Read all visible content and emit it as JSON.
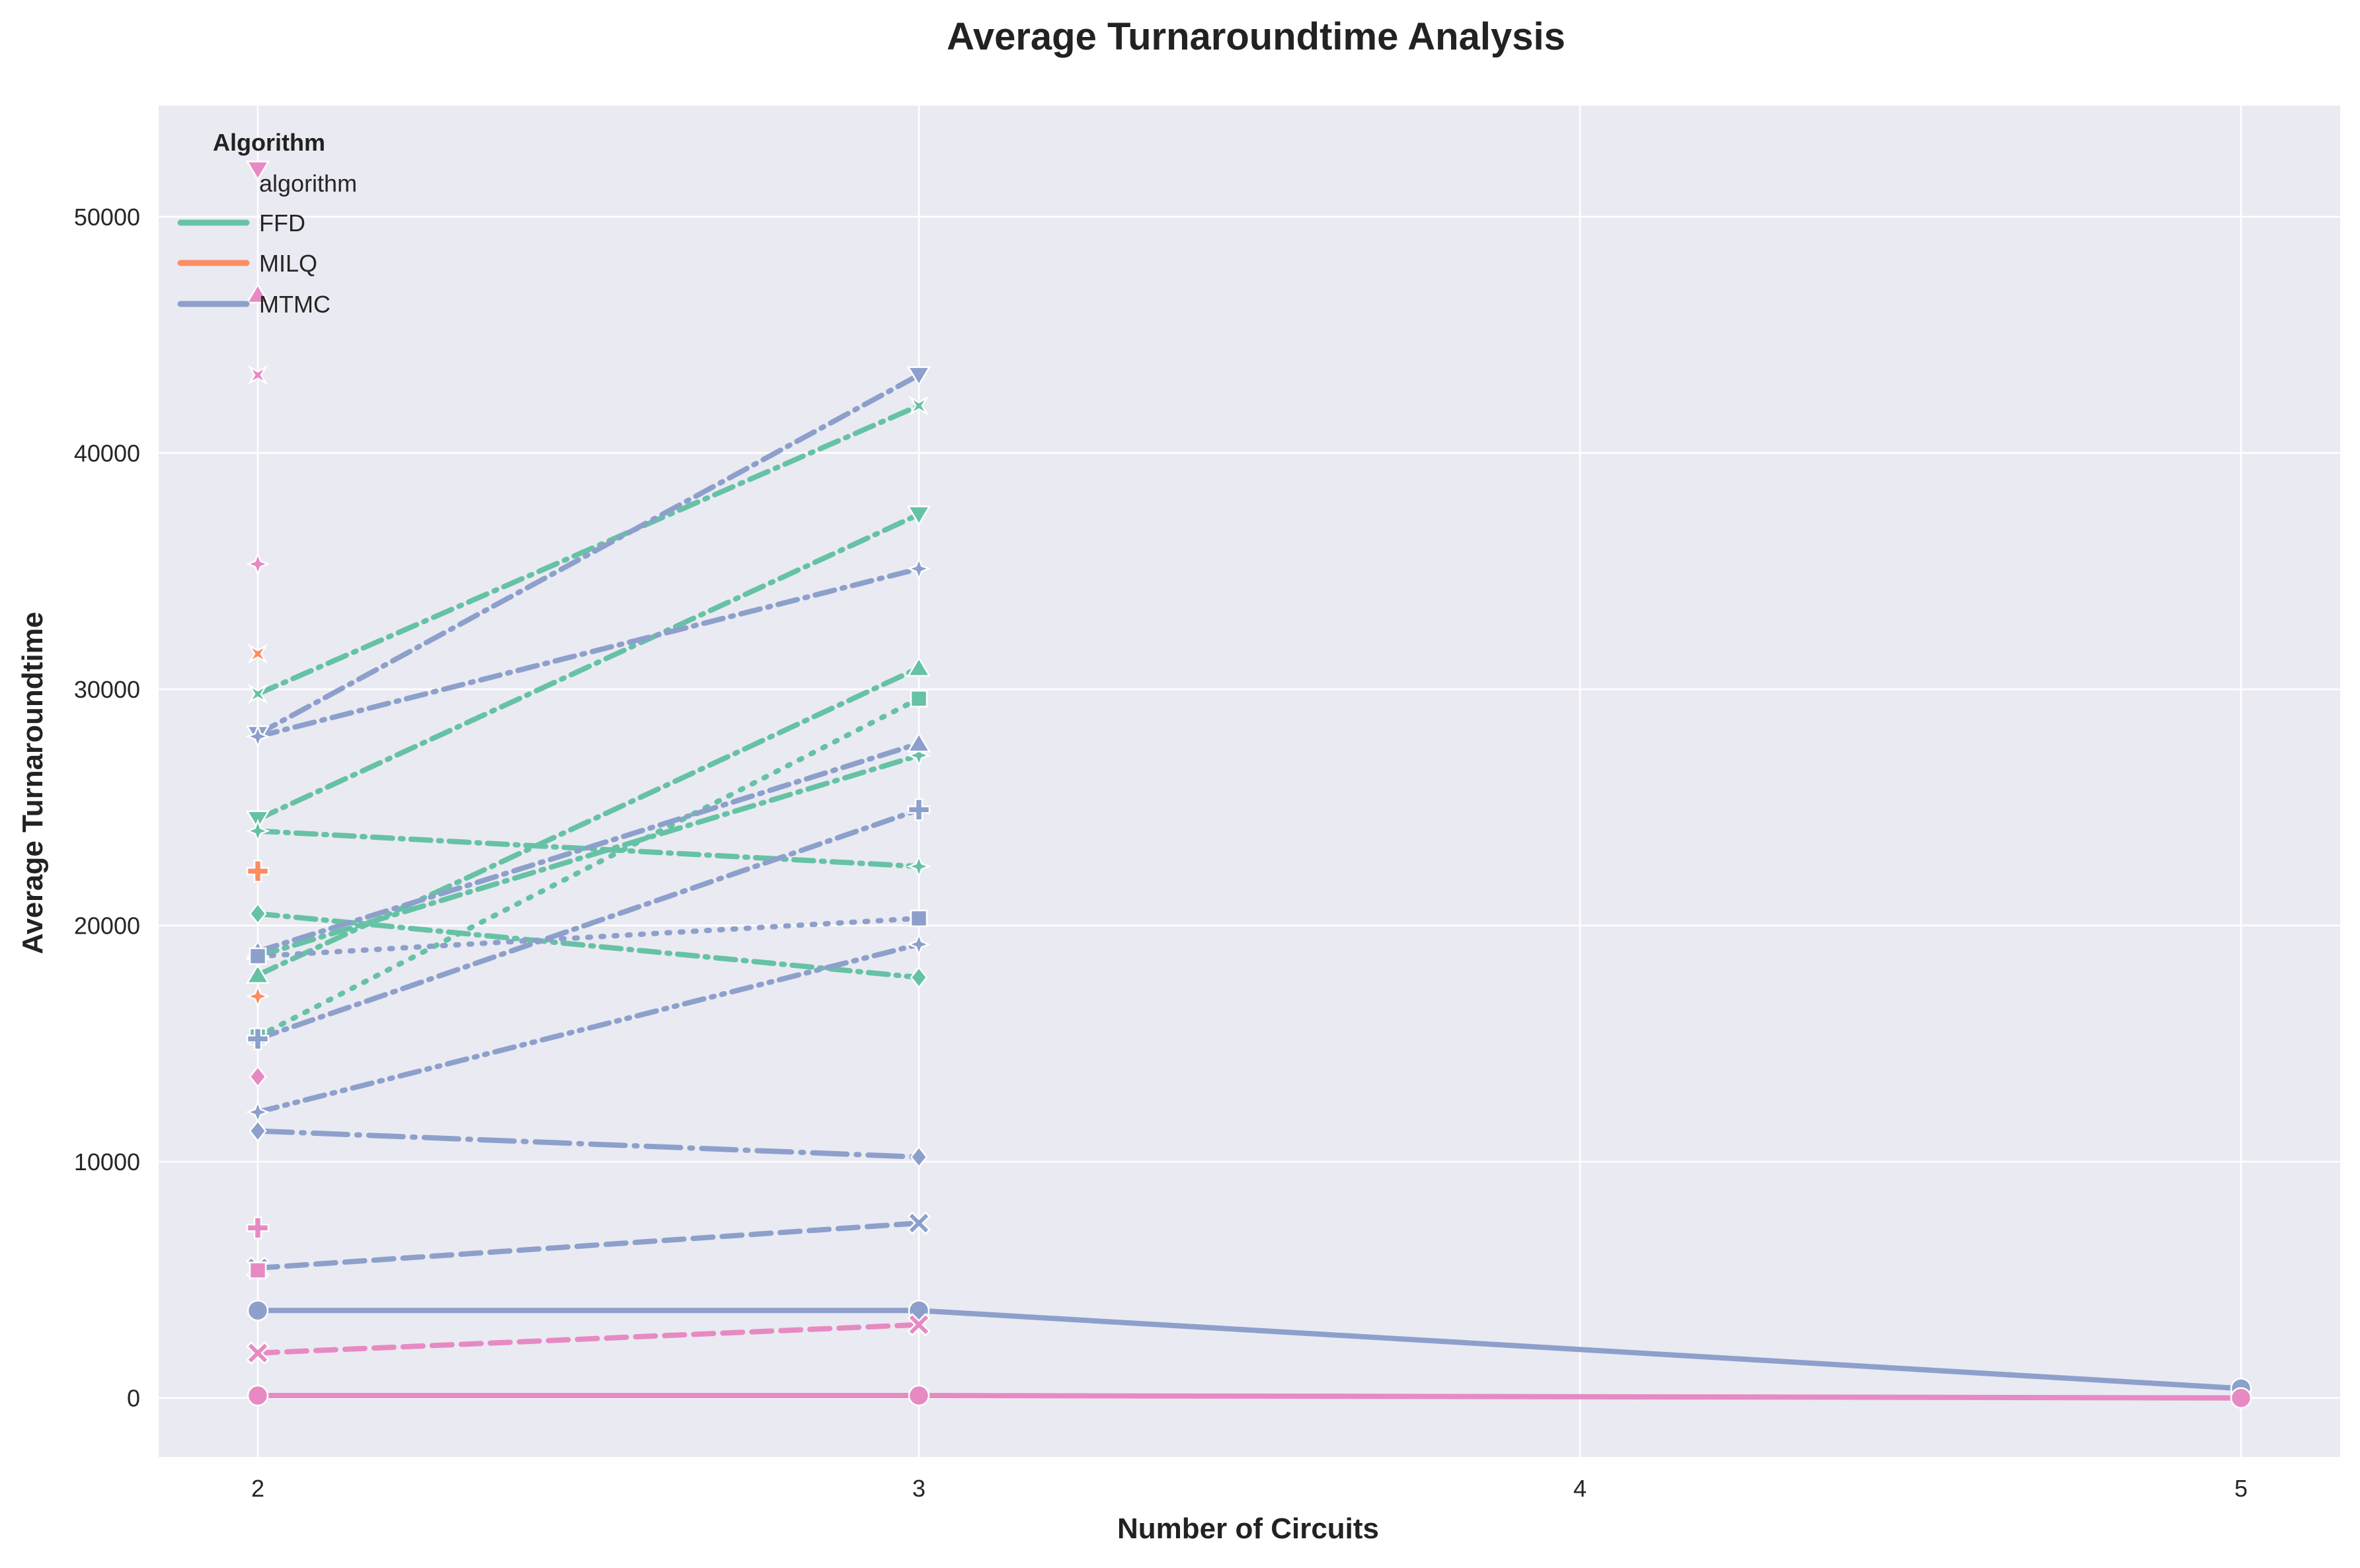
{
  "chart_data": {
    "type": "line",
    "title": "Average Turnaroundtime Analysis",
    "xlabel": "Number of Circuits",
    "ylabel": "Average Turnaroundtime",
    "xlim": [
      1.85,
      5.15
    ],
    "ylim": [
      -2500,
      54700
    ],
    "xticks": [
      2,
      3,
      4,
      5
    ],
    "yticks": [
      0,
      10000,
      20000,
      30000,
      40000,
      50000
    ],
    "grid": true,
    "background": "#eaeaf2",
    "legend": {
      "title": "Algorithm",
      "placement": "top-left",
      "header": "algorithm",
      "entries": [
        {
          "label": "FFD",
          "color": "#66c2a5"
        },
        {
          "label": "MILQ",
          "color": "#fc8d62"
        },
        {
          "label": "MTMC",
          "color": "#8da0cb"
        }
      ]
    },
    "colors": {
      "FFD": "#66c2a5",
      "MILQ": "#fc8d62",
      "MTMC": "#8da0cb",
      "pink": "#e78ac3"
    },
    "series": [
      {
        "color": "#66c2a5",
        "dash": "dashdot",
        "marker": "x4",
        "x": [
          2,
          3
        ],
        "y": [
          29800,
          42000
        ]
      },
      {
        "color": "#66c2a5",
        "dash": "dashdot",
        "marker": "tri-down",
        "x": [
          2,
          3
        ],
        "y": [
          24500,
          37400
        ]
      },
      {
        "color": "#66c2a5",
        "dash": "dashdot",
        "marker": "tri-up",
        "x": [
          2,
          3
        ],
        "y": [
          17900,
          30900
        ]
      },
      {
        "color": "#66c2a5",
        "dash": "dot",
        "marker": "square",
        "x": [
          2,
          3
        ],
        "y": [
          15300,
          29600
        ]
      },
      {
        "color": "#66c2a5",
        "dash": "dashdot",
        "marker": "star",
        "x": [
          2,
          3
        ],
        "y": [
          18700,
          27200
        ]
      },
      {
        "color": "#66c2a5",
        "dash": "dashdot",
        "marker": "star",
        "x": [
          2,
          3
        ],
        "y": [
          24000,
          22500
        ]
      },
      {
        "color": "#66c2a5",
        "dash": "dashdot",
        "marker": "diamond",
        "x": [
          2,
          3
        ],
        "y": [
          20500,
          17800
        ]
      },
      {
        "color": "#8da0cb",
        "dash": "dashdot",
        "marker": "tri-down",
        "x": [
          2,
          3
        ],
        "y": [
          28100,
          43300
        ]
      },
      {
        "color": "#8da0cb",
        "dash": "dashdot",
        "marker": "star",
        "x": [
          2,
          3
        ],
        "y": [
          28000,
          35100
        ]
      },
      {
        "color": "#8da0cb",
        "dash": "dashdot",
        "marker": "tri-up",
        "x": [
          2,
          3
        ],
        "y": [
          18900,
          27700
        ]
      },
      {
        "color": "#8da0cb",
        "dash": "dashdot",
        "marker": "plus",
        "x": [
          2,
          3
        ],
        "y": [
          15200,
          24900
        ]
      },
      {
        "color": "#8da0cb",
        "dash": "dot",
        "marker": "square",
        "x": [
          2,
          3
        ],
        "y": [
          18700,
          20300
        ]
      },
      {
        "color": "#8da0cb",
        "dash": "dashdotdot",
        "marker": "star",
        "x": [
          2,
          3
        ],
        "y": [
          12100,
          19200
        ]
      },
      {
        "color": "#8da0cb",
        "dash": "longdashdot",
        "marker": "diamond",
        "x": [
          2,
          3
        ],
        "y": [
          11300,
          10200
        ]
      },
      {
        "color": "#8da0cb",
        "dash": "dash",
        "marker": "x",
        "x": [
          2,
          3
        ],
        "y": [
          5500,
          7400
        ]
      },
      {
        "color": "#8da0cb",
        "dash": "solid",
        "marker": "circle",
        "x": [
          2,
          3,
          5
        ],
        "y": [
          3700,
          3700,
          400
        ]
      },
      {
        "color": "#e78ac3",
        "dash": "dash",
        "marker": "x",
        "x": [
          2,
          3
        ],
        "y": [
          1900,
          3100
        ]
      },
      {
        "color": "#e78ac3",
        "dash": "solid",
        "marker": "circle",
        "x": [
          2,
          3,
          5
        ],
        "y": [
          100,
          100,
          0
        ]
      }
    ],
    "points": [
      {
        "color": "#e78ac3",
        "marker": "tri-down",
        "x": 2,
        "y": 52000
      },
      {
        "color": "#e78ac3",
        "marker": "tri-up",
        "x": 2,
        "y": 46700
      },
      {
        "color": "#e78ac3",
        "marker": "x4",
        "x": 2,
        "y": 43300
      },
      {
        "color": "#e78ac3",
        "marker": "star",
        "x": 2,
        "y": 35300
      },
      {
        "color": "#fc8d62",
        "marker": "x4",
        "x": 2,
        "y": 31500
      },
      {
        "color": "#fc8d62",
        "marker": "plus",
        "x": 2,
        "y": 22300
      },
      {
        "color": "#fc8d62",
        "marker": "star",
        "x": 2,
        "y": 17000
      },
      {
        "color": "#e78ac3",
        "marker": "diamond",
        "x": 2,
        "y": 13600
      },
      {
        "color": "#e78ac3",
        "marker": "plus",
        "x": 2,
        "y": 7200
      },
      {
        "color": "#e78ac3",
        "marker": "square",
        "x": 2,
        "y": 5400
      }
    ]
  }
}
